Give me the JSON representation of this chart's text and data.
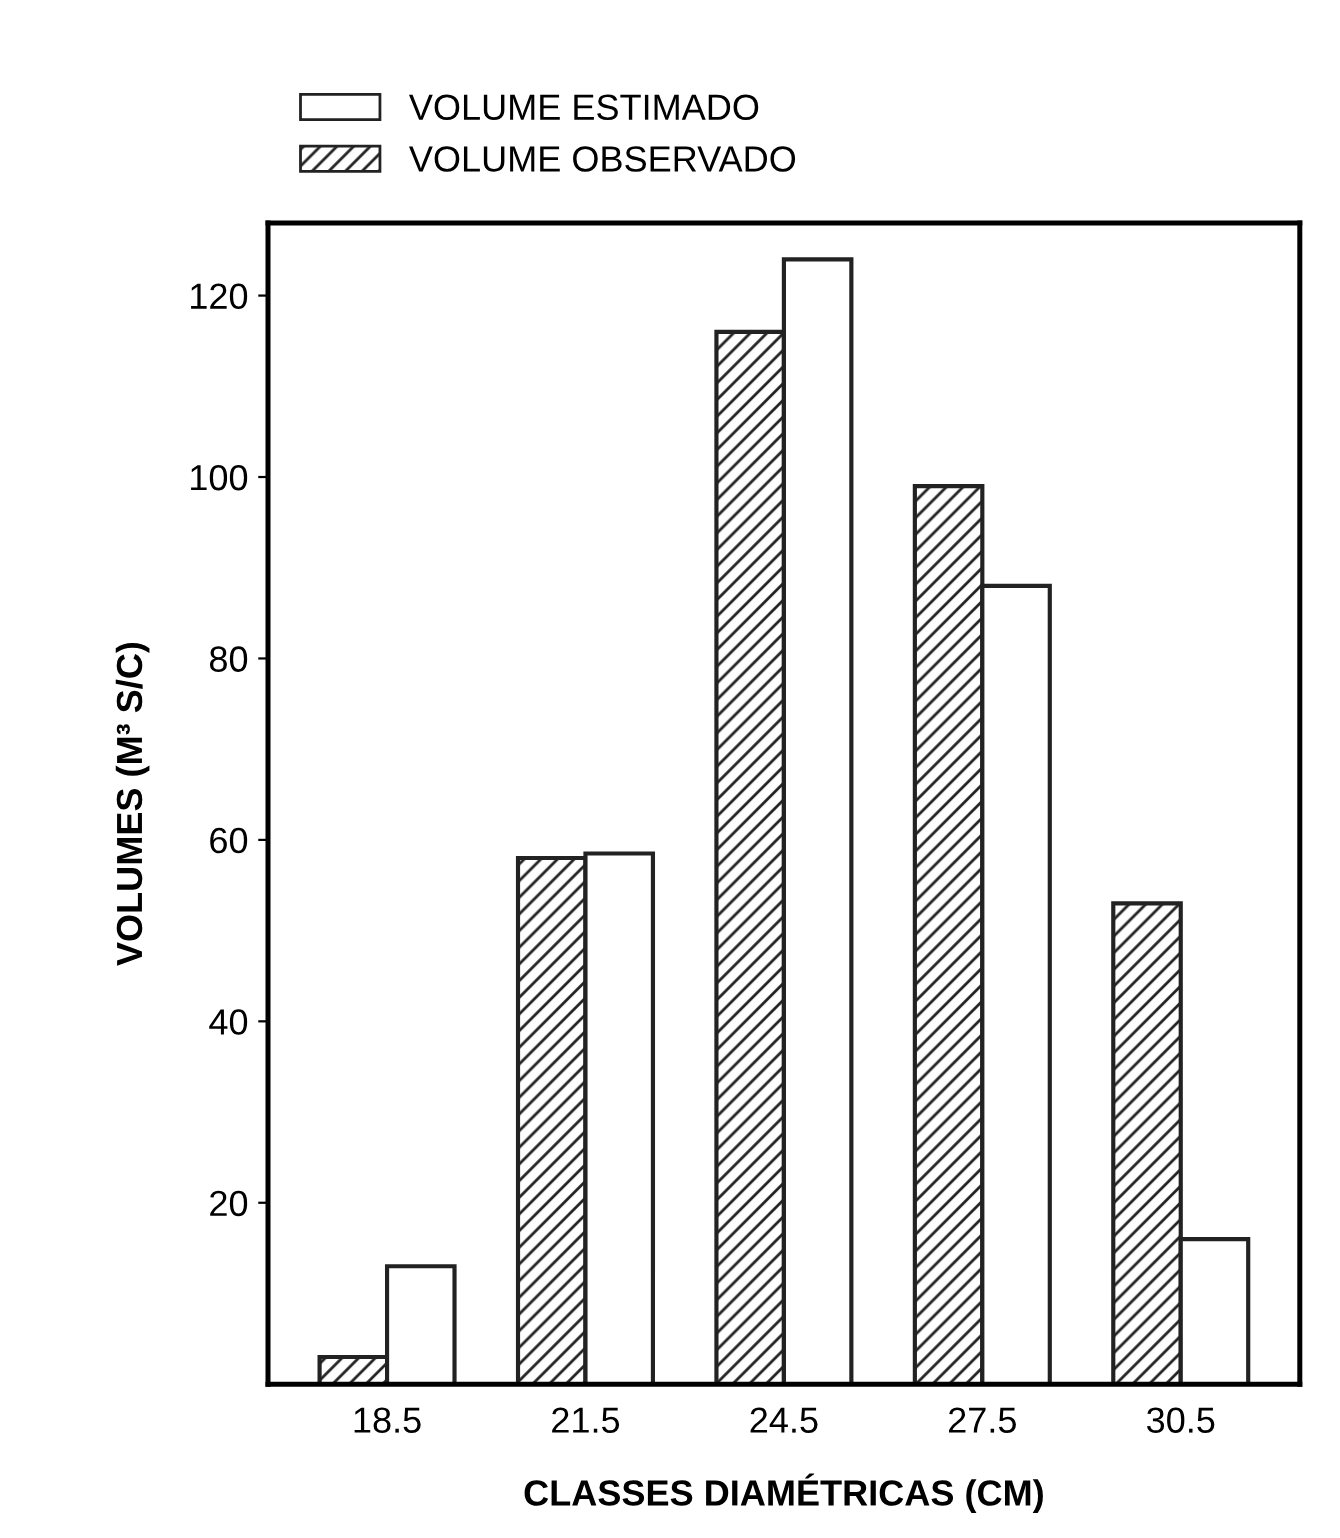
{
  "chart_data": {
    "type": "bar",
    "xlabel": "CLASSES DIAMÉTRICAS (CM)",
    "ylabel": "VOLUMES (M³ S/C)",
    "categories": [
      "18.5",
      "21.5",
      "24.5",
      "27.5",
      "30.5"
    ],
    "series": [
      {
        "name": "VOLUME OBSERVADO",
        "color": "#222222",
        "values": [
          3,
          58,
          116,
          99,
          53
        ]
      },
      {
        "name": "VOLUME ESTIMADO",
        "color": "#ffffff",
        "values": [
          13,
          58.5,
          124,
          88,
          16
        ]
      }
    ],
    "ylim": [
      0,
      128
    ],
    "yticks": [
      20,
      40,
      60,
      80,
      100,
      120
    ],
    "grid": false,
    "legend": "top left"
  }
}
